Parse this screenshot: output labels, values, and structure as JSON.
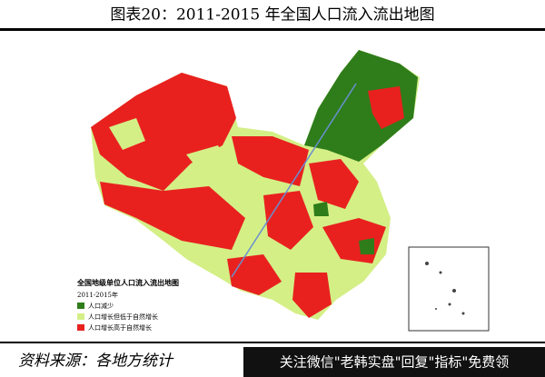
{
  "header": {
    "title": "图表20：2011-2015 年全国人口流入流出地图"
  },
  "map": {
    "legend_title": "全国地级单位人口流入流出地图",
    "period": "2011-2015年",
    "legend": [
      "人口减少",
      "人口增长但低于自然增长",
      "人口增长高于自然增长"
    ]
  },
  "footer": {
    "source": "资料来源：各地方统计",
    "watermark": "关注微信\"老韩实盘\"回复\"指标\"免费领"
  }
}
